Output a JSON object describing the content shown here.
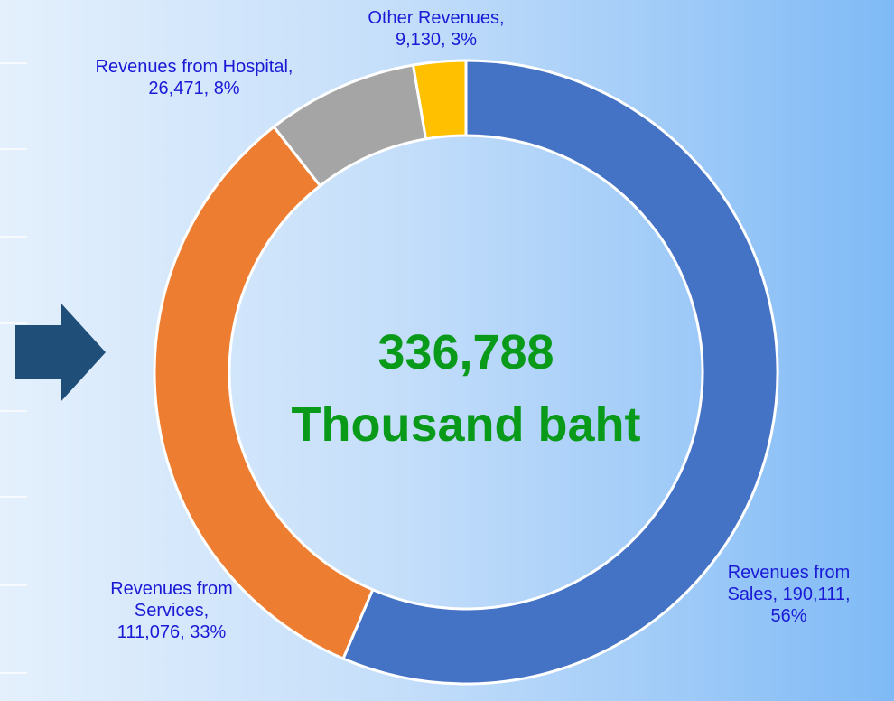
{
  "chart_data": {
    "type": "donut",
    "categories": [
      "Revenues from Sales,",
      "Revenues from Services,",
      "Revenues from Hospital,",
      "Other Revenues,"
    ],
    "values": [
      190111,
      111076,
      26471,
      9130
    ],
    "value_labels": [
      "190,111,",
      "111,076,",
      "26,471,",
      "9,130,"
    ],
    "percents": [
      56,
      33,
      8,
      3
    ],
    "percent_labels": [
      "56%",
      "33%",
      "8%",
      "3%"
    ],
    "colors": [
      "#4472c4",
      "#ed7d31",
      "#a5a5a5",
      "#ffc000"
    ],
    "annotations": [
      "336,788",
      "Thousand baht"
    ]
  }
}
